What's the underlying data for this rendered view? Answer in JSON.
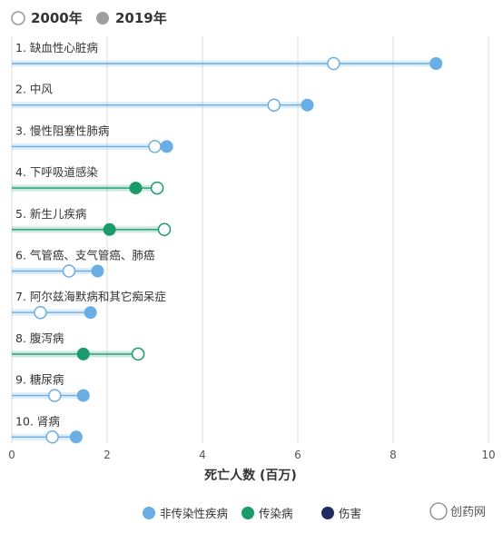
{
  "legend_top": {
    "year_a": "2000年",
    "year_b": "2019年"
  },
  "chart_data": {
    "type": "dot-plot",
    "xlabel": "死亡人数 (百万)",
    "xlim": [
      0,
      10
    ],
    "xticks": [
      "0",
      "2",
      "4",
      "6",
      "8",
      "10"
    ],
    "grid": true,
    "series": [
      {
        "name": "2000年",
        "marker": "hollow"
      },
      {
        "name": "2019年",
        "marker": "filled"
      }
    ],
    "categories_legend": [
      {
        "name": "非传染性疾病",
        "color": "#6aaee6"
      },
      {
        "name": "传染病",
        "color": "#1a9b6c"
      },
      {
        "name": "伤害",
        "color": "#1d2b5e"
      }
    ],
    "rows": [
      {
        "label": "1. 缺血性心脏病",
        "cat": "非传染性疾病",
        "v2000": 6.75,
        "v2019": 8.9
      },
      {
        "label": "2. 中风",
        "cat": "非传染性疾病",
        "v2000": 5.5,
        "v2019": 6.2
      },
      {
        "label": "3. 慢性阻塞性肺病",
        "cat": "非传染性疾病",
        "v2000": 3.0,
        "v2019": 3.25
      },
      {
        "label": "4. 下呼吸道感染",
        "cat": "传染病",
        "v2000": 3.05,
        "v2019": 2.6
      },
      {
        "label": "5. 新生儿疾病",
        "cat": "传染病",
        "v2000": 3.2,
        "v2019": 2.05
      },
      {
        "label": "6. 气管癌、支气管癌、肺癌",
        "cat": "非传染性疾病",
        "v2000": 1.2,
        "v2019": 1.8
      },
      {
        "label": "7. 阿尔兹海默病和其它痴呆症",
        "cat": "非传染性疾病",
        "v2000": 0.6,
        "v2019": 1.65
      },
      {
        "label": "8. 腹泻病",
        "cat": "传染病",
        "v2000": 2.65,
        "v2019": 1.5
      },
      {
        "label": "9. 糖尿病",
        "cat": "非传染性疾病",
        "v2000": 0.9,
        "v2019": 1.5
      },
      {
        "label": "10. 肾病",
        "cat": "非传染性疾病",
        "v2000": 0.85,
        "v2019": 1.35
      }
    ]
  },
  "watermark": "创药网"
}
